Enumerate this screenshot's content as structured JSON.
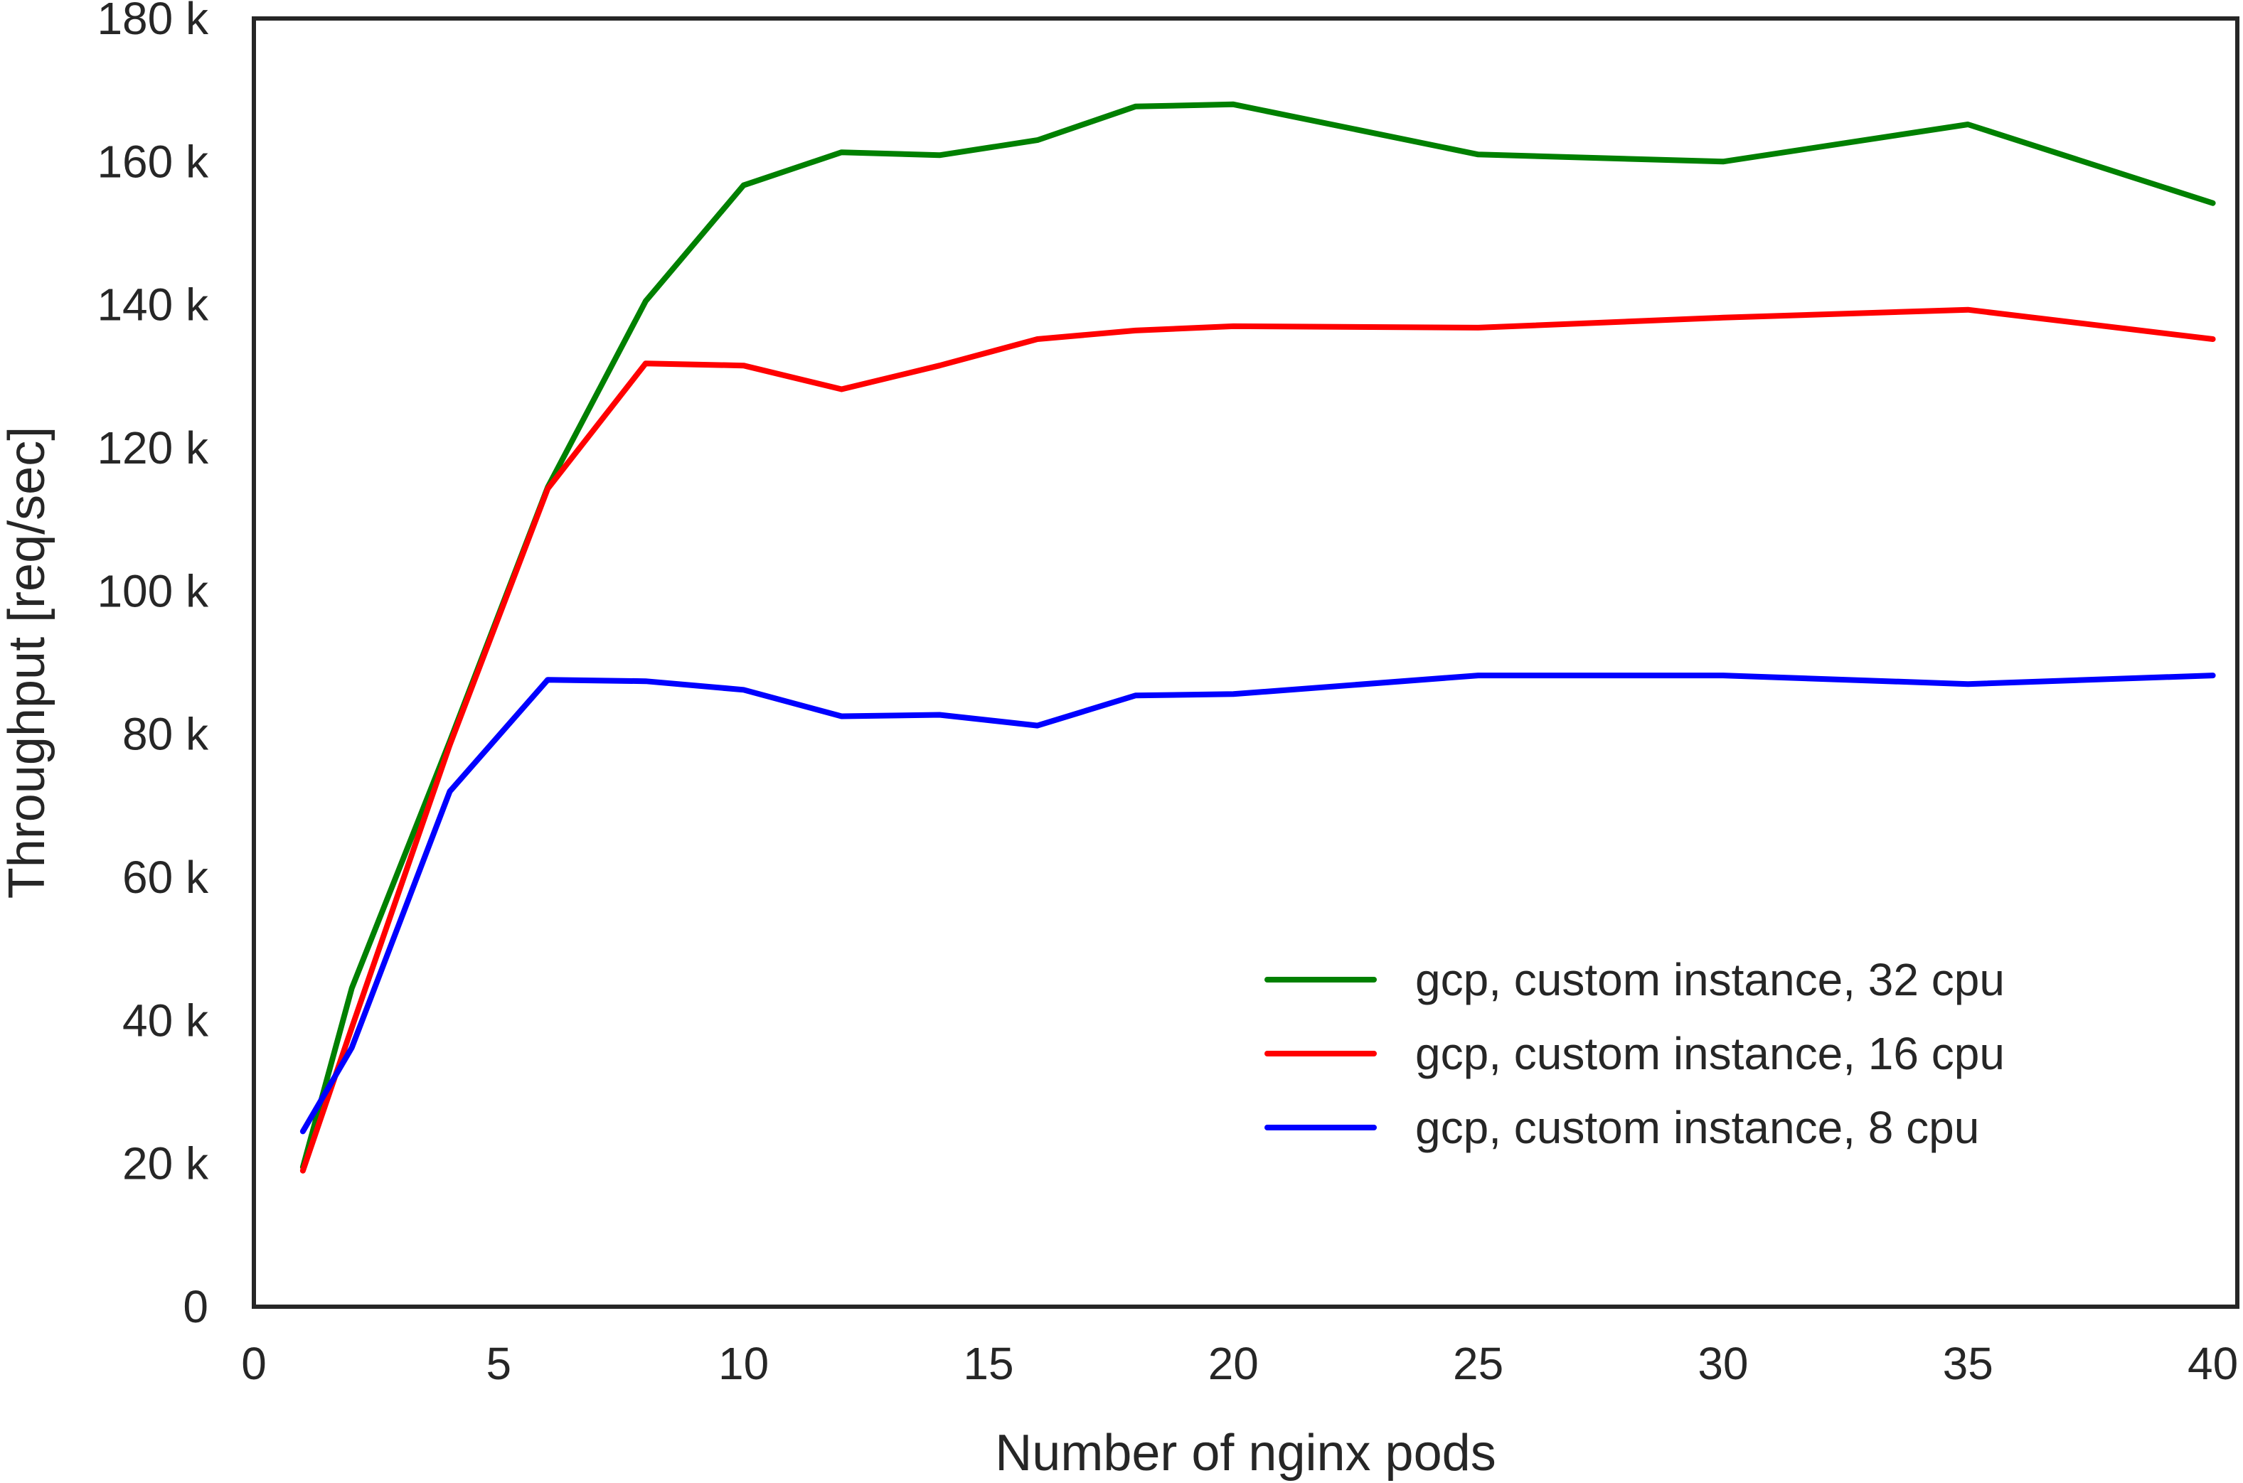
{
  "chart_data": {
    "type": "line",
    "title": "",
    "xlabel": "Number of nginx pods",
    "ylabel": "Throughput [req/sec]",
    "xlim": [
      0,
      40.5
    ],
    "ylim": [
      0,
      180000
    ],
    "x_ticks": [
      0,
      5,
      10,
      15,
      20,
      25,
      30,
      35,
      40
    ],
    "x_tick_labels": [
      "0",
      "5",
      "10",
      "15",
      "20",
      "25",
      "30",
      "35",
      "40"
    ],
    "y_ticks": [
      0,
      20000,
      40000,
      60000,
      80000,
      100000,
      120000,
      140000,
      160000,
      180000
    ],
    "y_tick_labels": [
      "0",
      "20 k",
      "40 k",
      "60 k",
      "80 k",
      "100 k",
      "120 k",
      "140 k",
      "160 k",
      "180 k"
    ],
    "grid": false,
    "legend_position": "lower-right",
    "x": [
      1,
      2,
      4,
      6,
      8,
      10,
      12,
      14,
      16,
      18,
      20,
      25,
      30,
      35,
      40
    ],
    "series": [
      {
        "name": "gcp, custom instance, 32 cpu",
        "color": "#008000",
        "values": [
          19500,
          44500,
          79000,
          114500,
          140500,
          156700,
          161300,
          160900,
          163000,
          167700,
          168000,
          161000,
          160000,
          165200,
          154200
        ]
      },
      {
        "name": "gcp, custom instance, 16 cpu",
        "color": "#ff0000",
        "values": [
          19000,
          39000,
          78500,
          114300,
          131800,
          131500,
          128200,
          131500,
          135200,
          136400,
          137000,
          136800,
          138200,
          139300,
          135200
        ]
      },
      {
        "name": "gcp, custom instance, 8 cpu",
        "color": "#0000ff",
        "values": [
          24500,
          36200,
          72000,
          87600,
          87400,
          86200,
          82500,
          82700,
          81200,
          85400,
          85600,
          88200,
          88200,
          87000,
          88200
        ]
      }
    ]
  }
}
